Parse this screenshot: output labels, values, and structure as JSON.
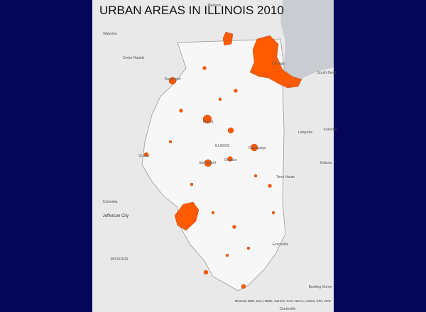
{
  "title": "URBAN AREAS IN ILLINOIS 2010",
  "places": [
    {
      "label": "Madison"
    },
    {
      "label": "Waterloo"
    },
    {
      "label": "Cedar Rapids"
    },
    {
      "label": "Davenport"
    },
    {
      "label": "Chicago"
    },
    {
      "label": "South Bend"
    },
    {
      "label": "Peoria"
    },
    {
      "label": "Lafayette"
    },
    {
      "label": "Kokomo"
    },
    {
      "label": "ILLINOIS"
    },
    {
      "label": "Champaign"
    },
    {
      "label": "Quincy"
    },
    {
      "label": "Springfield"
    },
    {
      "label": "Decatur"
    },
    {
      "label": "Indiana"
    },
    {
      "label": "Terre Haute"
    },
    {
      "label": "Columbia"
    },
    {
      "label": "Jefferson City"
    },
    {
      "label": "Evansville"
    },
    {
      "label": "MISSOURI"
    },
    {
      "label": "Bowling Green"
    },
    {
      "label": "Clarksville"
    }
  ],
  "attribution": "Missouri DNR, Esri, HERE, Garmin, FAO, NOAA, USGS, EPA, NPS"
}
